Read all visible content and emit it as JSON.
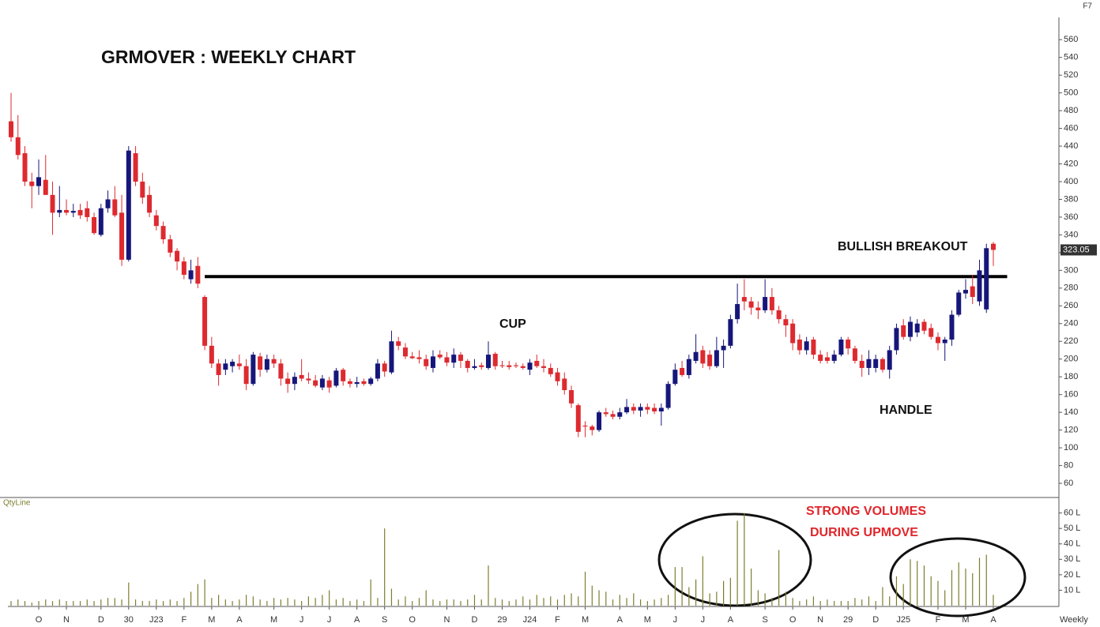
{
  "corner_label": "F7",
  "chart_data": [
    {
      "type": "candlestick",
      "title": "GRMOVER : WEEKLY CHART",
      "up_color": "#16167a",
      "down_color": "#dd2a2f",
      "xlim": [
        0,
        142
      ],
      "ylim": [
        44,
        578
      ],
      "yticks": [
        60,
        80,
        100,
        120,
        140,
        160,
        180,
        200,
        220,
        240,
        260,
        280,
        300,
        320,
        340,
        360,
        380,
        400,
        420,
        440,
        460,
        480,
        500,
        520,
        540,
        560
      ],
      "open": [
        468,
        450,
        432,
        400,
        395,
        402,
        385,
        365,
        368,
        365,
        368,
        370,
        360,
        340,
        370,
        380,
        365,
        312,
        432,
        400,
        385,
        362,
        350,
        335,
        322,
        310,
        290,
        305,
        270,
        215,
        195,
        188,
        192,
        195,
        192,
        172,
        203,
        188,
        200,
        195,
        178,
        172,
        182,
        178,
        176,
        168,
        176,
        170,
        188,
        175,
        172,
        175,
        172,
        178,
        195,
        185,
        220,
        213,
        203,
        202,
        200,
        190,
        205,
        202,
        196,
        205,
        198,
        190,
        193,
        190,
        206,
        193,
        193,
        193,
        192,
        188,
        198,
        192,
        190,
        185,
        178,
        165,
        148,
        125,
        124,
        120,
        140,
        138,
        135,
        140,
        146,
        142,
        146,
        145,
        141,
        145,
        172,
        190,
        182,
        198,
        210,
        205,
        192,
        210,
        215,
        245,
        270,
        265,
        258,
        255,
        270,
        255,
        245,
        240,
        222,
        210,
        222,
        205,
        202,
        198,
        205,
        222,
        212,
        198,
        190,
        190,
        200,
        188,
        210,
        238,
        225,
        230,
        242,
        235,
        225,
        218,
        222,
        250,
        274,
        282,
        265,
        256,
        330
      ],
      "high": [
        500,
        475,
        440,
        410,
        425,
        430,
        400,
        395,
        380,
        375,
        375,
        378,
        365,
        375,
        390,
        395,
        385,
        440,
        440,
        410,
        395,
        368,
        355,
        340,
        325,
        315,
        312,
        315,
        272,
        225,
        200,
        200,
        200,
        205,
        200,
        208,
        207,
        205,
        205,
        200,
        185,
        185,
        200,
        185,
        182,
        182,
        180,
        190,
        190,
        178,
        180,
        178,
        180,
        200,
        198,
        232,
        225,
        218,
        208,
        210,
        205,
        210,
        210,
        208,
        212,
        208,
        200,
        200,
        196,
        220,
        208,
        198,
        198,
        196,
        195,
        200,
        205,
        200,
        195,
        190,
        185,
        170,
        150,
        130,
        126,
        142,
        145,
        142,
        145,
        155,
        150,
        150,
        150,
        150,
        150,
        175,
        195,
        198,
        205,
        228,
        215,
        210,
        225,
        222,
        250,
        285,
        290,
        270,
        265,
        290,
        280,
        260,
        250,
        245,
        228,
        225,
        225,
        210,
        208,
        210,
        225,
        225,
        215,
        205,
        210,
        205,
        202,
        215,
        240,
        245,
        248,
        245,
        245,
        240,
        230,
        225,
        255,
        278,
        290,
        295,
        312,
        330,
        332
      ],
      "low": [
        445,
        425,
        395,
        370,
        385,
        390,
        340,
        360,
        362,
        360,
        358,
        355,
        340,
        338,
        365,
        360,
        305,
        310,
        395,
        375,
        360,
        345,
        330,
        315,
        300,
        290,
        285,
        280,
        210,
        190,
        170,
        182,
        185,
        188,
        165,
        170,
        180,
        185,
        190,
        170,
        162,
        165,
        175,
        172,
        168,
        165,
        162,
        168,
        170,
        168,
        168,
        170,
        170,
        175,
        180,
        183,
        210,
        200,
        200,
        195,
        188,
        185,
        200,
        192,
        190,
        190,
        185,
        188,
        188,
        188,
        188,
        190,
        188,
        190,
        188,
        182,
        190,
        185,
        180,
        170,
        160,
        145,
        112,
        112,
        114,
        118,
        135,
        132,
        132,
        138,
        138,
        135,
        138,
        138,
        125,
        143,
        170,
        180,
        178,
        195,
        190,
        188,
        190,
        190,
        212,
        240,
        255,
        250,
        245,
        252,
        250,
        240,
        225,
        210,
        205,
        205,
        200,
        195,
        195,
        195,
        203,
        205,
        195,
        180,
        182,
        185,
        185,
        178,
        205,
        222,
        220,
        225,
        228,
        222,
        210,
        198,
        215,
        248,
        268,
        262,
        260,
        252,
        305
      ],
      "close": [
        450,
        430,
        400,
        395,
        405,
        385,
        365,
        368,
        365,
        367,
        362,
        360,
        342,
        370,
        380,
        362,
        312,
        435,
        400,
        382,
        365,
        350,
        335,
        320,
        310,
        295,
        300,
        285,
        215,
        195,
        182,
        195,
        197,
        192,
        172,
        205,
        188,
        200,
        195,
        178,
        172,
        180,
        178,
        176,
        170,
        178,
        168,
        187,
        175,
        172,
        174,
        172,
        178,
        195,
        186,
        220,
        215,
        203,
        201,
        200,
        192,
        203,
        202,
        196,
        205,
        198,
        190,
        192,
        191,
        205,
        192,
        192,
        191,
        192,
        190,
        196,
        192,
        190,
        183,
        175,
        165,
        150,
        118,
        124,
        120,
        140,
        138,
        135,
        140,
        146,
        142,
        146,
        143,
        141,
        145,
        172,
        188,
        182,
        200,
        208,
        195,
        192,
        210,
        215,
        245,
        262,
        265,
        258,
        255,
        270,
        255,
        245,
        238,
        218,
        210,
        220,
        205,
        198,
        198,
        205,
        222,
        212,
        198,
        190,
        200,
        200,
        188,
        210,
        235,
        225,
        242,
        240,
        232,
        225,
        218,
        222,
        250,
        275,
        278,
        270,
        300,
        325,
        323.05
      ],
      "lines": [
        {
          "y": 293,
          "x": [
            28,
            144
          ]
        }
      ],
      "annotations": [
        {
          "text": "BULLISH BREAKOUT"
        },
        {
          "text": "CUP"
        },
        {
          "text": "HANDLE"
        },
        {
          "text": "STRONG VOLUMES",
          "color": "#e0262b"
        },
        {
          "text": "DURING UPMOVE",
          "color": "#e0262b"
        }
      ]
    },
    {
      "type": "bar",
      "name": "QtyLine",
      "xlabel": "Weekly",
      "color": "#7d7d2e",
      "xlim": [
        0,
        142
      ],
      "ylim": [
        0,
        69
      ],
      "yticks": [
        {
          "value": 10,
          "label": "10 L"
        },
        {
          "value": 20,
          "label": "20 L"
        },
        {
          "value": 30,
          "label": "30 L"
        },
        {
          "value": 40,
          "label": "40 L"
        },
        {
          "value": 50,
          "label": "50 L"
        },
        {
          "value": 60,
          "label": "60 L"
        }
      ],
      "xticks": [
        {
          "value": 4,
          "label": "O"
        },
        {
          "value": 8,
          "label": "N"
        },
        {
          "value": 13,
          "label": "D"
        },
        {
          "value": 17,
          "label": "30"
        },
        {
          "value": 21,
          "label": "J23"
        },
        {
          "value": 25,
          "label": "F"
        },
        {
          "value": 29,
          "label": "M"
        },
        {
          "value": 33,
          "label": "A"
        },
        {
          "value": 38,
          "label": "M"
        },
        {
          "value": 42,
          "label": "J"
        },
        {
          "value": 46,
          "label": "J"
        },
        {
          "value": 50,
          "label": "A"
        },
        {
          "value": 54,
          "label": "S"
        },
        {
          "value": 58,
          "label": "O"
        },
        {
          "value": 63,
          "label": "N"
        },
        {
          "value": 67,
          "label": "D"
        },
        {
          "value": 71,
          "label": "29"
        },
        {
          "value": 75,
          "label": "J24"
        },
        {
          "value": 79,
          "label": "F"
        },
        {
          "value": 83,
          "label": "M"
        },
        {
          "value": 88,
          "label": "A"
        },
        {
          "value": 92,
          "label": "M"
        },
        {
          "value": 96,
          "label": "J"
        },
        {
          "value": 100,
          "label": "J"
        },
        {
          "value": 104,
          "label": "A"
        },
        {
          "value": 109,
          "label": "S"
        },
        {
          "value": 113,
          "label": "O"
        },
        {
          "value": 117,
          "label": "N"
        },
        {
          "value": 121,
          "label": "29"
        },
        {
          "value": 125,
          "label": "D"
        },
        {
          "value": 129,
          "label": "J25"
        },
        {
          "value": 134,
          "label": "F"
        },
        {
          "value": 138,
          "label": "M"
        },
        {
          "value": 142,
          "label": "A"
        }
      ],
      "values": [
        3,
        4,
        3,
        2,
        3,
        4,
        3,
        4,
        3,
        3,
        3,
        4,
        3,
        4,
        5,
        5,
        4,
        15,
        4,
        3,
        3,
        4,
        3,
        4,
        3,
        5,
        9,
        14,
        17,
        5,
        7,
        4,
        3,
        4,
        7,
        6,
        4,
        3,
        5,
        4,
        5,
        4,
        3,
        6,
        5,
        7,
        10,
        4,
        5,
        3,
        4,
        3,
        17,
        5,
        50,
        11,
        4,
        6,
        3,
        5,
        10,
        4,
        3,
        4,
        4,
        3,
        4,
        7,
        4,
        26,
        5,
        4,
        3,
        4,
        6,
        4,
        7,
        5,
        6,
        4,
        7,
        8,
        6,
        22,
        13,
        10,
        9,
        4,
        7,
        5,
        8,
        4,
        3,
        4,
        5,
        7,
        25,
        25,
        12,
        17,
        32,
        8,
        9,
        16,
        18,
        55,
        60,
        24,
        10,
        8,
        5,
        36,
        9,
        5,
        3,
        4,
        6,
        3,
        4,
        3,
        3,
        3,
        5,
        4,
        6,
        3,
        12,
        6,
        19,
        14,
        30,
        29,
        26,
        19,
        16,
        10,
        23,
        28,
        24,
        21,
        31,
        33,
        7
      ]
    }
  ]
}
